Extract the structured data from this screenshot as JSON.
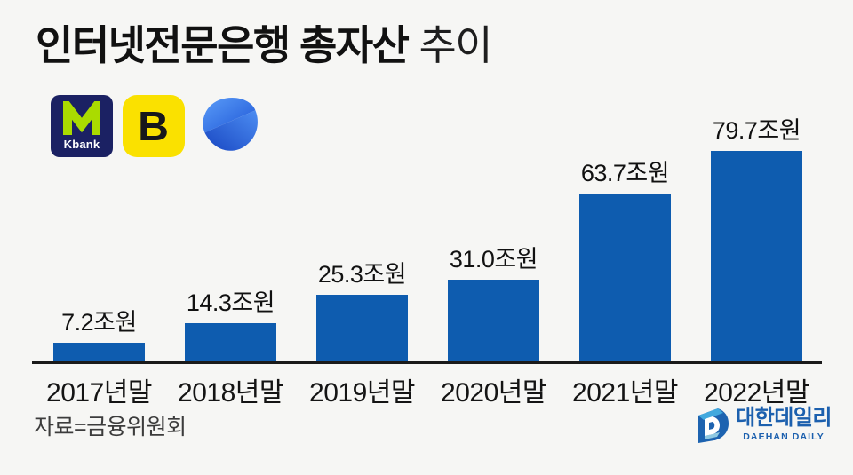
{
  "header": {
    "title_bold": "인터넷전문은행 총자산",
    "title_light": "추이",
    "logos": {
      "kbank_label": "Kbank",
      "kakaobank_label": "B",
      "kbank_bg": "#1b2163",
      "kbank_lime": "#aadb00",
      "kakaobank_bg": "#fae100",
      "tossbank_blue": "#2563eb"
    }
  },
  "chart_data": {
    "type": "bar",
    "title": "인터넷전문은행 총자산 추이",
    "categories": [
      "2017년말",
      "2018년말",
      "2019년말",
      "2020년말",
      "2021년말",
      "2022년말"
    ],
    "values": [
      7.2,
      14.3,
      25.3,
      31.0,
      63.7,
      79.7
    ],
    "value_labels": [
      "7.2조원",
      "14.3조원",
      "25.3조원",
      "31.0조원",
      "63.7조원",
      "79.7조원"
    ],
    "unit": "조원",
    "xlabel": "",
    "ylabel": "",
    "ylim": [
      0,
      80
    ],
    "grid": false,
    "legend": false,
    "bar_color": "#0e5caf",
    "axis_color": "#1a1a1a",
    "background_color": "#f6f6f4"
  },
  "footer": {
    "source": "자료=금융위원회",
    "publisher_name": "대한데일리",
    "publisher_sub": "DAEHAN DAILY",
    "publisher_color": "#1c60ae"
  }
}
